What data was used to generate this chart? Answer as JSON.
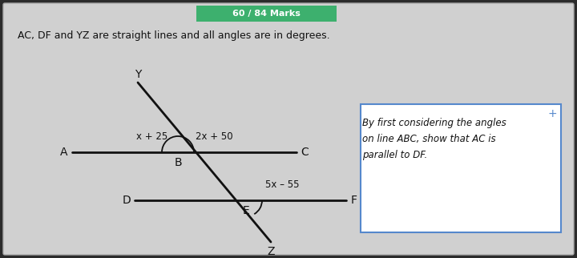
{
  "bg_color": "#2b2b2b",
  "panel_color": "#d0d0d0",
  "title_bar_color": "#3db06e",
  "title_bar_text": "60 / 84 Marks",
  "title_bar_text_color": "#ffffff",
  "main_text": "AC, DF and YZ are straight lines and all angles are in degrees.",
  "main_text_color": "#111111",
  "right_text_line1": "By first considering the angles",
  "right_text_line2": "on line ABC, show that AC is",
  "right_text_line3": "parallel to DF.",
  "right_text_color": "#111111",
  "answer_box_color": "#ffffff",
  "answer_box_border": "#5588cc",
  "line_color": "#111111",
  "angle_arc_color": "#111111",
  "label_color": "#111111",
  "label_x25": "x + 25",
  "label_2x50": "2x + 50",
  "label_5x55": "5x – 55",
  "label_A": "A",
  "label_B": "B",
  "label_C": "C",
  "label_D": "D",
  "label_E": "E",
  "label_F": "F",
  "label_Y": "Y",
  "label_Z": "Z"
}
